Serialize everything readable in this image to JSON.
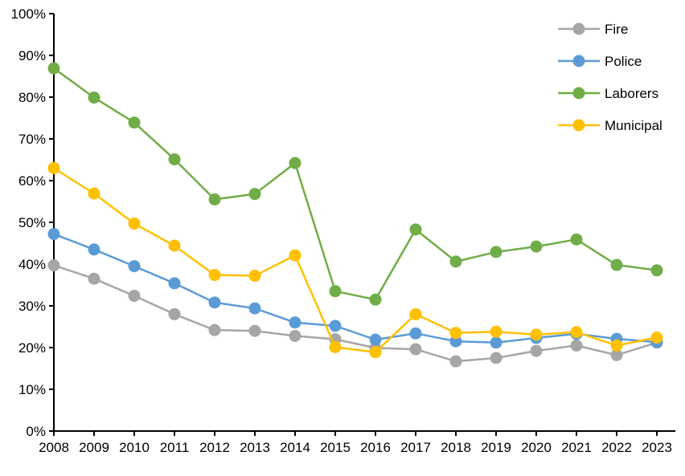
{
  "chart_data": {
    "type": "line",
    "title": "",
    "xlabel": "",
    "ylabel": "",
    "x": [
      "2008",
      "2009",
      "2010",
      "2011",
      "2012",
      "2013",
      "2014",
      "2015",
      "2016",
      "2017",
      "2018",
      "2019",
      "2020",
      "2021",
      "2022",
      "2023"
    ],
    "series": [
      {
        "name": "Fire",
        "color": "#A6A6A6",
        "values": [
          39.7,
          36.5,
          32.4,
          28.0,
          24.2,
          24.0,
          22.8,
          22.0,
          19.9,
          19.6,
          16.7,
          17.5,
          19.2,
          20.5,
          18.2,
          21.2
        ]
      },
      {
        "name": "Police",
        "color": "#5B9BD5",
        "values": [
          47.2,
          43.5,
          39.5,
          35.4,
          30.8,
          29.4,
          26.0,
          25.2,
          21.9,
          23.4,
          21.5,
          21.2,
          22.3,
          23.3,
          22.1,
          21.3
        ]
      },
      {
        "name": "Laborers",
        "color": "#70AD47",
        "values": [
          86.9,
          79.9,
          73.9,
          65.1,
          55.5,
          56.8,
          64.2,
          33.5,
          31.5,
          48.3,
          40.6,
          42.9,
          44.2,
          45.9,
          39.8,
          38.5
        ]
      },
      {
        "name": "Municipal",
        "color": "#FFC000",
        "values": [
          63.0,
          56.9,
          49.7,
          44.4,
          37.4,
          37.2,
          42.1,
          20.1,
          18.9,
          28.0,
          23.5,
          23.8,
          23.1,
          23.7,
          20.5,
          22.4
        ]
      }
    ],
    "ylim": [
      0,
      100
    ],
    "ytick_step": 10,
    "ytick_labels": [
      "0%",
      "10%",
      "20%",
      "30%",
      "40%",
      "50%",
      "60%",
      "70%",
      "80%",
      "90%",
      "100%"
    ],
    "grid": false,
    "legend_position": "top-right",
    "axis_color": "#000000",
    "background": "#FFFFFF"
  }
}
